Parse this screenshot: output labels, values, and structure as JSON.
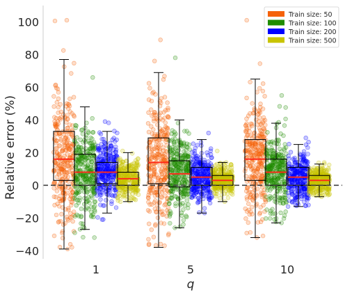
{
  "chart_data": {
    "type": "box",
    "xlabel": "q",
    "ylabel": "Relative error (%)",
    "categories": [
      "1",
      "5",
      "10"
    ],
    "ylim": [
      -45,
      110
    ],
    "yticks": [
      -40,
      -20,
      0,
      20,
      40,
      60,
      80,
      100
    ],
    "reference_line": 0,
    "legend_position": "top-right",
    "grid": false,
    "overlay": "jittered points per box (approx. 300 per box)",
    "series": [
      {
        "name": "Train size: 50",
        "color": "#f5620a",
        "boxes": [
          {
            "category": "1",
            "whisker_low": -39,
            "q1": 3,
            "median": 16,
            "q3": 33,
            "whisker_high": 77,
            "point_max": 101,
            "point_min": -39
          },
          {
            "category": "5",
            "whisker_low": -38,
            "q1": 1,
            "median": 14,
            "q3": 29,
            "whisker_high": 69,
            "point_max": 89,
            "point_min": -37
          },
          {
            "category": "10",
            "whisker_low": -32,
            "q1": 3,
            "median": 16,
            "q3": 28,
            "whisker_high": 65,
            "point_max": 101,
            "point_min": -32
          }
        ]
      },
      {
        "name": "Train size: 100",
        "color": "#1f8c00",
        "boxes": [
          {
            "category": "1",
            "whisker_low": -27,
            "q1": 0,
            "median": 8,
            "q3": 19,
            "whisker_high": 48,
            "point_max": 66,
            "point_min": -32
          },
          {
            "category": "5",
            "whisker_low": -26,
            "q1": -1,
            "median": 7,
            "q3": 15,
            "whisker_high": 40,
            "point_max": 78,
            "point_min": -26
          },
          {
            "category": "10",
            "whisker_low": -23,
            "q1": 0,
            "median": 8,
            "q3": 16,
            "whisker_high": 38,
            "point_max": 55,
            "point_min": -23
          }
        ]
      },
      {
        "name": "Train size: 200",
        "color": "#0000ff",
        "boxes": [
          {
            "category": "1",
            "whisker_low": -17,
            "q1": 1,
            "median": 8,
            "q3": 14,
            "whisker_high": 33,
            "point_max": 39,
            "point_min": -21
          },
          {
            "category": "5",
            "whisker_low": -17,
            "q1": 0,
            "median": 5,
            "q3": 11,
            "whisker_high": 28,
            "point_max": 32,
            "point_min": -17
          },
          {
            "category": "10",
            "whisker_low": -13,
            "q1": 0,
            "median": 5,
            "q3": 11,
            "whisker_high": 25,
            "point_max": 29,
            "point_min": -13
          }
        ]
      },
      {
        "name": "Train size: 500",
        "color": "#c8c400",
        "boxes": [
          {
            "category": "1",
            "whisker_low": -10,
            "q1": 0,
            "median": 4,
            "q3": 8,
            "whisker_high": 20,
            "point_max": 21,
            "point_min": -10
          },
          {
            "category": "5",
            "whisker_low": -10,
            "q1": 0,
            "median": 3,
            "q3": 6,
            "whisker_high": 14,
            "point_max": 21,
            "point_min": -10
          },
          {
            "category": "10",
            "whisker_low": -7,
            "q1": 0,
            "median": 3,
            "q3": 6,
            "whisker_high": 13,
            "point_max": 14,
            "point_min": -7
          }
        ]
      }
    ]
  }
}
